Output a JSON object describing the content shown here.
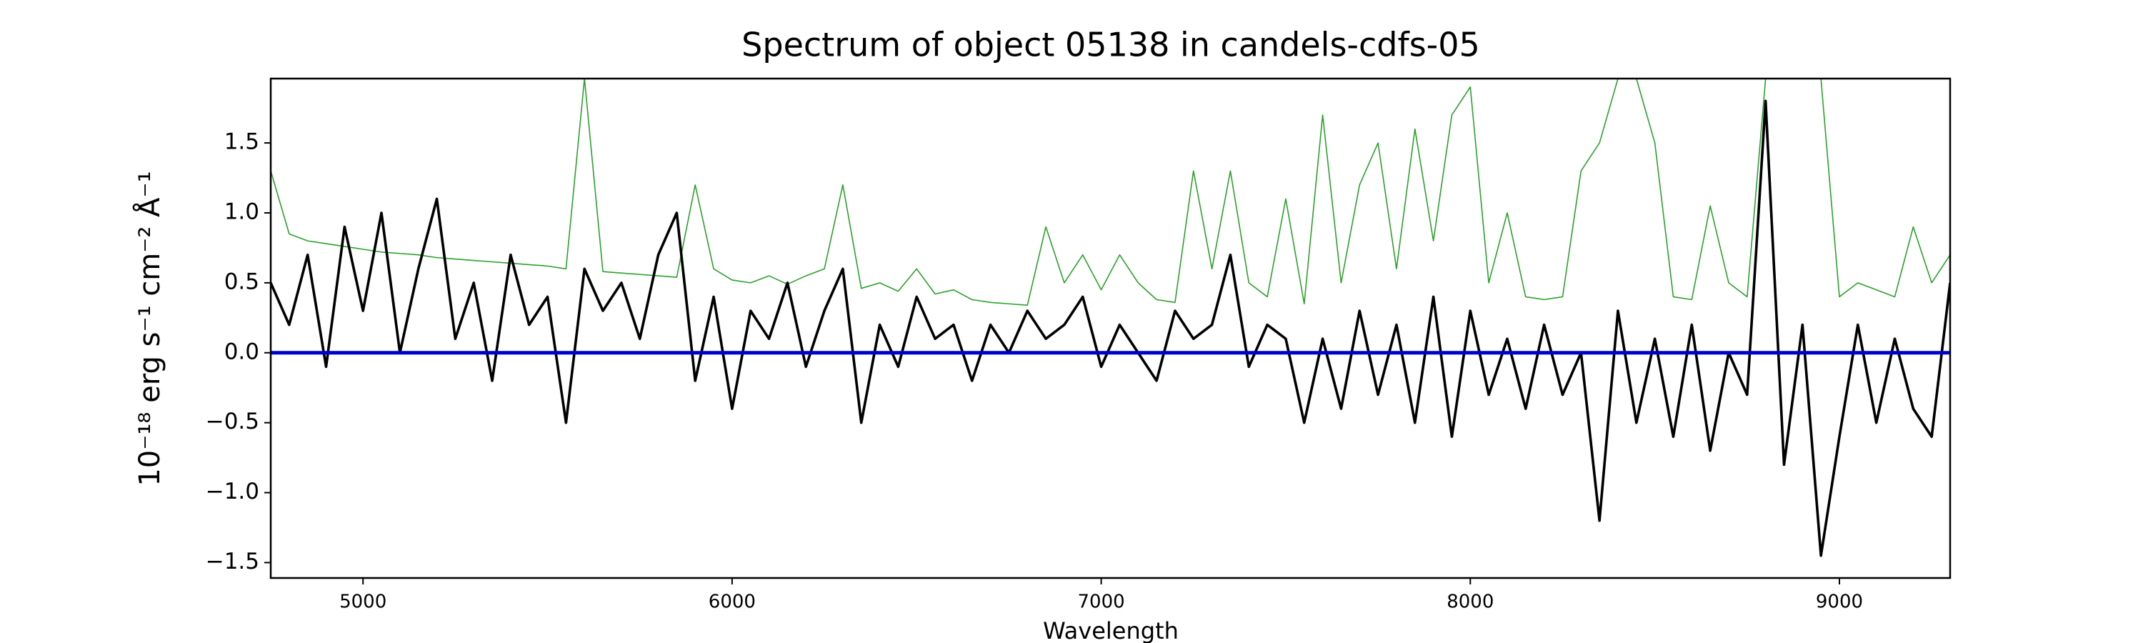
{
  "chart_data": {
    "type": "line",
    "title": "Spectrum of object 05138 in candels-cdfs-05",
    "x_label": "Wavelength",
    "y_label": "10⁻¹⁸ erg s⁻¹ cm⁻² Å⁻¹",
    "xlim": [
      4750,
      9300
    ],
    "ylim": [
      -1.61,
      1.96
    ],
    "xticks": [
      5000,
      6000,
      7000,
      8000,
      9000
    ],
    "yticks": [
      {
        "value": -1.5,
        "label": "−1.5"
      },
      {
        "value": -1,
        "label": "−1.0"
      },
      {
        "value": -0.5,
        "label": "−0.5"
      },
      {
        "value": 0,
        "label": "0.0"
      },
      {
        "value": 0.5,
        "label": "0.5"
      },
      {
        "value": 1,
        "label": "1.0"
      },
      {
        "value": 1.5,
        "label": "1.5"
      }
    ],
    "grid": false,
    "x": [
      4750,
      4800,
      4850,
      4900,
      4950,
      5000,
      5050,
      5100,
      5150,
      5200,
      5250,
      5300,
      5350,
      5400,
      5450,
      5500,
      5550,
      5600,
      5650,
      5700,
      5750,
      5800,
      5850,
      5900,
      5950,
      6000,
      6050,
      6100,
      6150,
      6200,
      6250,
      6300,
      6350,
      6400,
      6450,
      6500,
      6550,
      6600,
      6650,
      6700,
      6750,
      6800,
      6850,
      6900,
      6950,
      7000,
      7050,
      7100,
      7150,
      7200,
      7250,
      7300,
      7350,
      7400,
      7450,
      7500,
      7550,
      7600,
      7650,
      7700,
      7750,
      7800,
      7850,
      7900,
      7950,
      8000,
      8050,
      8100,
      8150,
      8200,
      8250,
      8300,
      8350,
      8400,
      8450,
      8500,
      8550,
      8600,
      8650,
      8700,
      8750,
      8800,
      8850,
      8900,
      8950,
      9000,
      9050,
      9100,
      9150,
      9200,
      9250,
      9300
    ],
    "series": [
      {
        "color": "#2ca02c",
        "width": 1.6,
        "values": [
          1.3,
          0.85,
          0.8,
          0.78,
          0.76,
          0.74,
          0.72,
          0.71,
          0.7,
          0.68,
          0.67,
          0.66,
          0.65,
          0.64,
          0.63,
          0.62,
          0.6,
          1.96,
          0.58,
          0.57,
          0.56,
          0.55,
          0.54,
          1.2,
          0.6,
          0.52,
          0.5,
          0.55,
          0.49,
          0.55,
          0.6,
          1.2,
          0.46,
          0.5,
          0.44,
          0.6,
          0.42,
          0.45,
          0.38,
          0.36,
          0.35,
          0.34,
          0.9,
          0.5,
          0.7,
          0.45,
          0.7,
          0.5,
          0.38,
          0.36,
          1.3,
          0.6,
          1.3,
          0.5,
          0.4,
          1.1,
          0.35,
          1.7,
          0.5,
          1.2,
          1.5,
          0.6,
          1.6,
          0.8,
          1.7,
          1.9,
          0.5,
          1.0,
          0.4,
          0.38,
          0.4,
          1.3,
          1.5,
          1.96,
          1.96,
          1.5,
          0.4,
          0.38,
          1.05,
          0.5,
          0.4,
          1.96,
          1.96,
          1.96,
          1.96,
          0.4,
          0.5,
          0.45,
          0.4,
          0.9,
          0.5,
          0.7
        ]
      },
      {
        "color": "#000000",
        "width": 3.6,
        "values": [
          0.5,
          0.2,
          0.7,
          -0.1,
          0.9,
          0.3,
          1.0,
          0.0,
          0.6,
          1.1,
          0.1,
          0.5,
          -0.2,
          0.7,
          0.2,
          0.4,
          -0.5,
          0.6,
          0.3,
          0.5,
          0.1,
          0.7,
          1.0,
          -0.2,
          0.4,
          -0.4,
          0.3,
          0.1,
          0.5,
          -0.1,
          0.3,
          0.6,
          -0.5,
          0.2,
          -0.1,
          0.4,
          0.1,
          0.2,
          -0.2,
          0.2,
          0.0,
          0.3,
          0.1,
          0.2,
          0.4,
          -0.1,
          0.2,
          0.0,
          -0.2,
          0.3,
          0.1,
          0.2,
          0.7,
          -0.1,
          0.2,
          0.1,
          -0.5,
          0.1,
          -0.4,
          0.3,
          -0.3,
          0.2,
          -0.5,
          0.4,
          -0.6,
          0.3,
          -0.3,
          0.1,
          -0.4,
          0.2,
          -0.3,
          0.0,
          -1.2,
          0.3,
          -0.5,
          0.1,
          -0.6,
          0.2,
          -0.7,
          0.0,
          -0.3,
          1.8,
          -0.8,
          0.2,
          -1.45,
          -0.6,
          0.2,
          -0.5,
          0.1,
          -0.4,
          -0.6,
          0.5
        ]
      },
      {
        "color": "#0000cc",
        "width": 5,
        "values": [
          0,
          0,
          0,
          0,
          0,
          0,
          0,
          0,
          0,
          0,
          0,
          0,
          0,
          0,
          0,
          0,
          0,
          0,
          0,
          0,
          0,
          0,
          0,
          0,
          0,
          0,
          0,
          0,
          0,
          0,
          0,
          0,
          0,
          0,
          0,
          0,
          0,
          0,
          0,
          0,
          0,
          0,
          0,
          0,
          0,
          0,
          0,
          0,
          0,
          0,
          0,
          0,
          0,
          0,
          0,
          0,
          0,
          0,
          0,
          0,
          0,
          0,
          0,
          0,
          0,
          0,
          0,
          0,
          0,
          0,
          0,
          0,
          0,
          0,
          0,
          0,
          0,
          0,
          0,
          0,
          0,
          0,
          0,
          0,
          0,
          0,
          0,
          0,
          0,
          0,
          0,
          0
        ]
      }
    ]
  }
}
